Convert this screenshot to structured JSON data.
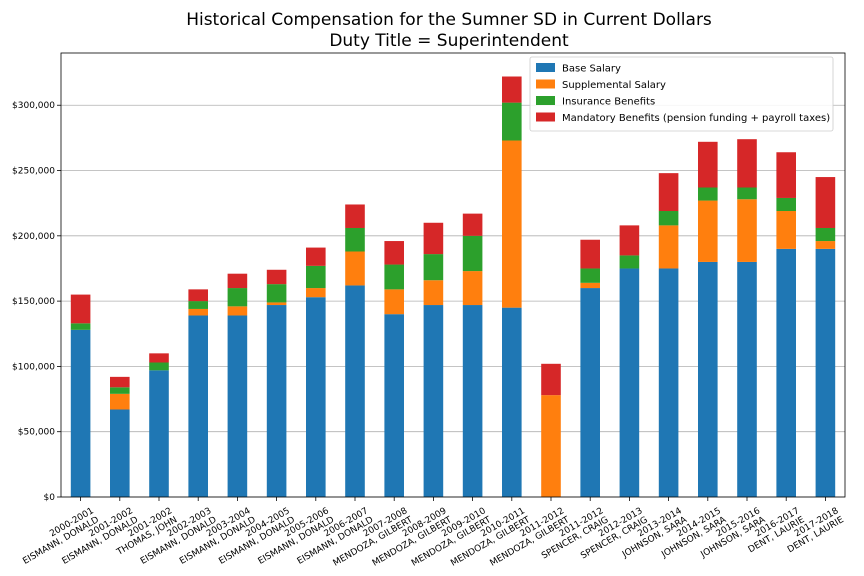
{
  "chart_data": {
    "type": "bar",
    "stacked": true,
    "title": "Historical Compensation for the Sumner SD in Current Dollars",
    "subtitle": "Duty Title = Superintendent",
    "xlabel": "",
    "ylabel": "",
    "ylim": [
      0,
      340000
    ],
    "yticks": [
      0,
      50000,
      100000,
      150000,
      200000,
      250000,
      300000
    ],
    "ytick_labels": [
      "$0",
      "$50,000",
      "$100,000",
      "$150,000",
      "$200,000",
      "$250,000",
      "$300,000"
    ],
    "grid": "horizontal",
    "legend_position": "top-right",
    "categories": [
      [
        "2000-2001",
        "EISMANN, DONALD"
      ],
      [
        "2001-2002",
        "EISMANN, DONALD"
      ],
      [
        "2001-2002",
        "THOMAS, JOHN"
      ],
      [
        "2002-2003",
        "EISMANN, DONALD"
      ],
      [
        "2003-2004",
        "EISMANN, DONALD"
      ],
      [
        "2004-2005",
        "EISMANN, DONALD"
      ],
      [
        "2005-2006",
        "EISMANN, DONALD"
      ],
      [
        "2006-2007",
        "EISMANN, DONALD"
      ],
      [
        "2007-2008",
        "MENDOZA, GILBERT"
      ],
      [
        "2008-2009",
        "MENDOZA, GILBERT"
      ],
      [
        "2009-2010",
        "MENDOZA, GILBERT"
      ],
      [
        "2010-2011",
        "MENDOZA, GILBERT"
      ],
      [
        "2011-2012",
        "MENDOZA, GILBERT"
      ],
      [
        "2011-2012",
        "SPENCER, CRAIG"
      ],
      [
        "2012-2013",
        "SPENCER, CRAIG"
      ],
      [
        "2013-2014",
        "JOHNSON, SARA"
      ],
      [
        "2014-2015",
        "JOHNSON, SARA"
      ],
      [
        "2015-2016",
        "JOHNSON, SARA"
      ],
      [
        "2016-2017",
        "DENT, LAURIE"
      ],
      [
        "2017-2018",
        "DENT, LAURIE"
      ]
    ],
    "series": [
      {
        "name": "Base Salary",
        "color": "#1f77b4",
        "values": [
          128000,
          67000,
          97000,
          139000,
          139000,
          147000,
          153000,
          162000,
          140000,
          147000,
          147000,
          145000,
          0,
          160000,
          175000,
          175000,
          180000,
          180000,
          190000,
          190000
        ]
      },
      {
        "name": "Supplemental Salary",
        "color": "#ff7f0e",
        "values": [
          0,
          12000,
          0,
          5000,
          7000,
          2000,
          7000,
          26000,
          19000,
          19000,
          26000,
          128000,
          78000,
          4000,
          0,
          33000,
          47000,
          48000,
          29000,
          6000
        ]
      },
      {
        "name": "Insurance Benefits",
        "color": "#2ca02c",
        "values": [
          5000,
          5000,
          6000,
          6000,
          14000,
          14000,
          17000,
          18000,
          19000,
          20000,
          27000,
          29000,
          0,
          11000,
          10000,
          11000,
          10000,
          9000,
          10000,
          10000
        ]
      },
      {
        "name": "Mandatory Benefits (pension funding + payroll taxes)",
        "color": "#d62728",
        "values": [
          22000,
          8000,
          7000,
          9000,
          11000,
          11000,
          14000,
          18000,
          18000,
          24000,
          17000,
          20000,
          24000,
          22000,
          23000,
          29000,
          35000,
          37000,
          35000,
          39000
        ]
      }
    ]
  }
}
